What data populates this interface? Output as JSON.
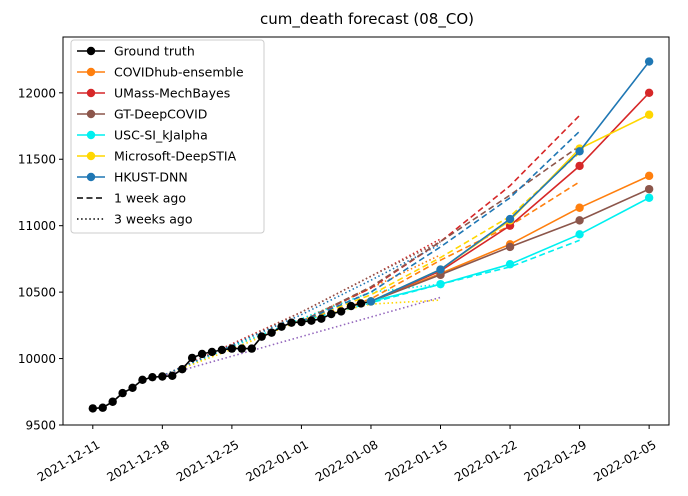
{
  "chart_data": {
    "type": "line",
    "title": "cum_death forecast (08_CO)",
    "xlabel": "",
    "ylabel": "",
    "x_tick_labels": [
      "2021-12-11",
      "2021-12-18",
      "2021-12-25",
      "2022-01-01",
      "2022-01-08",
      "2022-01-15",
      "2022-01-22",
      "2022-01-29",
      "2022-02-05"
    ],
    "y_ticks": [
      9500,
      10000,
      10500,
      11000,
      11500,
      12000
    ],
    "xlim": [
      "2021-12-08",
      "2022-02-07"
    ],
    "ylim": [
      9500,
      12420
    ],
    "grid": false,
    "legend_position": "top-left",
    "legend": {
      "entries": [
        "Ground truth",
        "COVIDhub-ensemble",
        "UMass-MechBayes",
        "GT-DeepCOVID",
        "USC-SI_kJalpha",
        "Microsoft-DeepSTIA",
        "HKUST-DNN"
      ],
      "style_entries": [
        "1 week ago",
        "3 weeks ago"
      ]
    },
    "ground_truth": {
      "name": "Ground truth",
      "color": "#000000",
      "x": [
        "2021-12-11",
        "2021-12-12",
        "2021-12-13",
        "2021-12-14",
        "2021-12-15",
        "2021-12-16",
        "2021-12-17",
        "2021-12-18",
        "2021-12-19",
        "2021-12-20",
        "2021-12-21",
        "2021-12-22",
        "2021-12-23",
        "2021-12-24",
        "2021-12-25",
        "2021-12-26",
        "2021-12-27",
        "2021-12-28",
        "2021-12-29",
        "2021-12-30",
        "2021-12-31",
        "2022-01-01",
        "2022-01-02",
        "2022-01-03",
        "2022-01-04",
        "2022-01-05",
        "2022-01-06",
        "2022-01-07",
        "2022-01-08"
      ],
      "y": [
        9625,
        9630,
        9675,
        9740,
        9780,
        9840,
        9860,
        9865,
        9870,
        9920,
        10005,
        10035,
        10050,
        10065,
        10075,
        10075,
        10075,
        10165,
        10195,
        10240,
        10270,
        10275,
        10285,
        10300,
        10335,
        10355,
        10395,
        10415,
        10430
      ]
    },
    "series": [
      {
        "name": "COVIDhub-ensemble",
        "color": "#ff7f0e",
        "current": {
          "x": [
            "2022-01-08",
            "2022-01-15",
            "2022-01-22",
            "2022-01-29",
            "2022-02-05"
          ],
          "y": [
            10430,
            10640,
            10860,
            11135,
            11375
          ]
        },
        "week1": {
          "x": [
            "2022-01-01",
            "2022-01-08",
            "2022-01-15",
            "2022-01-22",
            "2022-01-29"
          ],
          "y": [
            10280,
            10450,
            10740,
            11000,
            11330
          ]
        },
        "week3": {
          "x": [
            "2021-12-18",
            "2021-12-25",
            "2022-01-01",
            "2022-01-08",
            "2022-01-15"
          ],
          "y": [
            9870,
            10090,
            10290,
            10530,
            10780
          ]
        }
      },
      {
        "name": "UMass-MechBayes",
        "color": "#d62728",
        "current": {
          "x": [
            "2022-01-08",
            "2022-01-15",
            "2022-01-22",
            "2022-01-29",
            "2022-02-05"
          ],
          "y": [
            10430,
            10660,
            11000,
            11450,
            12000
          ]
        },
        "week1": {
          "x": [
            "2022-01-01",
            "2022-01-08",
            "2022-01-15",
            "2022-01-22",
            "2022-01-29"
          ],
          "y": [
            10280,
            10530,
            10880,
            11300,
            11830
          ]
        },
        "week3": {
          "x": [
            "2021-12-18",
            "2021-12-25",
            "2022-01-01",
            "2022-01-08",
            "2022-01-15"
          ],
          "y": [
            9870,
            10110,
            10350,
            10620,
            10900
          ]
        }
      },
      {
        "name": "GT-DeepCOVID",
        "color": "#8c564b",
        "current": {
          "x": [
            "2022-01-08",
            "2022-01-15",
            "2022-01-22",
            "2022-01-29",
            "2022-02-05"
          ],
          "y": [
            10430,
            10630,
            10840,
            11040,
            11275
          ]
        },
        "week1": {
          "x": [
            "2022-01-01",
            "2022-01-08",
            "2022-01-15",
            "2022-01-22",
            "2022-01-29"
          ],
          "y": [
            10280,
            10540,
            10880,
            11230,
            11600
          ]
        },
        "week3": {
          "x": [
            "2021-12-18",
            "2021-12-25",
            "2022-01-01",
            "2022-01-08",
            "2022-01-15"
          ],
          "y": [
            9870,
            10100,
            10350,
            10620,
            10880
          ]
        }
      },
      {
        "name": "USC-SI_kJalpha",
        "color": "#00f0f0",
        "current": {
          "x": [
            "2022-01-08",
            "2022-01-15",
            "2022-01-22",
            "2022-01-29",
            "2022-02-05"
          ],
          "y": [
            10430,
            10560,
            10710,
            10935,
            11210
          ]
        },
        "week1": {
          "x": [
            "2022-01-01",
            "2022-01-08",
            "2022-01-15",
            "2022-01-22",
            "2022-01-29"
          ],
          "y": [
            10280,
            10420,
            10560,
            10690,
            10890
          ]
        },
        "week3": {
          "x": [
            "2021-12-18",
            "2021-12-25",
            "2022-01-01",
            "2022-01-08",
            "2022-01-15"
          ],
          "y": [
            9870,
            10090,
            10300,
            10500,
            10560
          ]
        }
      },
      {
        "name": "Microsoft-DeepSTIA",
        "color": "#ffd700",
        "current": {
          "x": [
            "2022-01-08",
            "2022-01-15",
            "2022-01-22",
            "2022-01-29",
            "2022-02-05"
          ],
          "y": [
            10430,
            10670,
            11040,
            11580,
            11835
          ]
        },
        "week1": {
          "x": [
            "2022-01-01",
            "2022-01-08",
            "2022-01-15",
            "2022-01-22",
            "2022-01-29"
          ],
          "y": [
            10280,
            10480,
            10760,
            11070,
            11550
          ]
        },
        "week3": {
          "x": [
            "2021-12-18",
            "2021-12-25",
            "2022-01-01",
            "2022-01-08",
            "2022-01-15"
          ],
          "y": [
            9870,
            10070,
            10290,
            10410,
            10440
          ]
        }
      },
      {
        "name": "HKUST-DNN",
        "color": "#1f77b4",
        "current": {
          "x": [
            "2022-01-08",
            "2022-01-15",
            "2022-01-22",
            "2022-01-29",
            "2022-02-05"
          ],
          "y": [
            10430,
            10670,
            11050,
            11560,
            12235
          ]
        },
        "week1": {
          "x": [
            "2022-01-01",
            "2022-01-08",
            "2022-01-15",
            "2022-01-22",
            "2022-01-29"
          ],
          "y": [
            10280,
            10500,
            10840,
            11210,
            11710
          ]
        },
        "week3": {
          "x": [
            "2021-12-18",
            "2021-12-25",
            "2022-01-01",
            "2022-01-08",
            "2022-01-15"
          ],
          "y": [
            9870,
            10100,
            10330,
            10590,
            10860
          ]
        }
      }
    ],
    "week3_extra": {
      "color": "#9467bd",
      "x": [
        "2021-12-18",
        "2022-01-15"
      ],
      "y": [
        9870,
        10460
      ]
    }
  }
}
